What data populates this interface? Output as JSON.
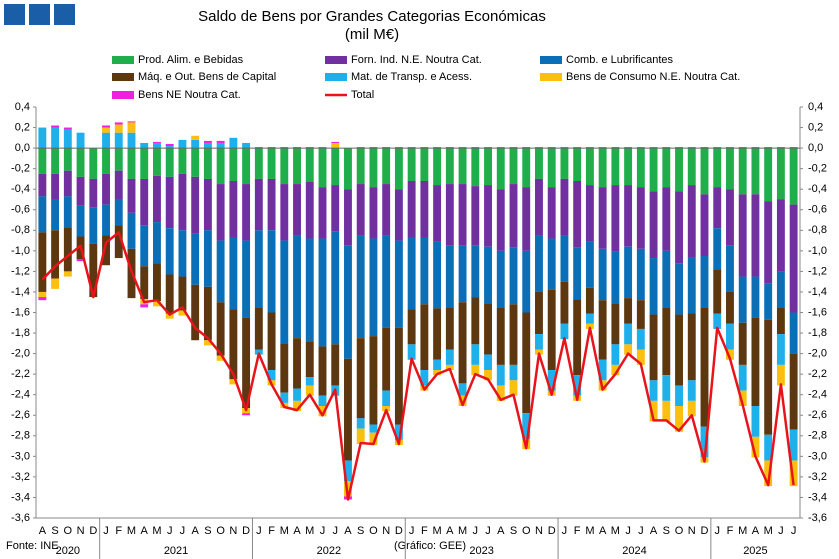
{
  "chart_data": {
    "type": "stacked_bar",
    "title": "Saldo de Bens por Grandes Categorias Económicas",
    "subtitle": "(mil M€)",
    "source": "Fonte: INE",
    "credit": "(Gráfico: GEE)",
    "groups": [
      {
        "year": "2020",
        "months": [
          "A",
          "S",
          "O",
          "N",
          "D"
        ]
      },
      {
        "year": "2021",
        "months": [
          "J",
          "F",
          "M",
          "A",
          "M",
          "J",
          "J",
          "A",
          "S",
          "O",
          "N",
          "D"
        ]
      },
      {
        "year": "2022",
        "months": [
          "J",
          "F",
          "M",
          "A",
          "M",
          "J",
          "J",
          "A",
          "S",
          "O",
          "N",
          "D"
        ]
      },
      {
        "year": "2023",
        "months": [
          "J",
          "F",
          "M",
          "A",
          "M",
          "J",
          "J",
          "A",
          "S",
          "O",
          "N",
          "D"
        ]
      },
      {
        "year": "2024",
        "months": [
          "J",
          "F",
          "M",
          "A",
          "M",
          "J",
          "J",
          "A",
          "S",
          "O",
          "N",
          "D"
        ]
      },
      {
        "year": "2025",
        "months": [
          "J",
          "F",
          "M",
          "A",
          "M",
          "J",
          "J"
        ]
      }
    ],
    "ylim": [
      -3.6,
      0.4
    ],
    "yticks": [
      {
        "value": 0.4,
        "label": "0,4"
      },
      {
        "value": 0.2,
        "label": "0,2"
      },
      {
        "value": 0,
        "label": "0,0"
      },
      {
        "value": -0.2,
        "label": "-0,2"
      },
      {
        "value": -0.4,
        "label": "-0,4"
      },
      {
        "value": -0.6,
        "label": "-0,6"
      },
      {
        "value": -0.8,
        "label": "-0,8"
      },
      {
        "value": -1.0,
        "label": "-1,0"
      },
      {
        "value": -1.2,
        "label": "-1,2"
      },
      {
        "value": -1.4,
        "label": "-1,4"
      },
      {
        "value": -1.6,
        "label": "-1,6"
      },
      {
        "value": -1.8,
        "label": "-1,8"
      },
      {
        "value": -2.0,
        "label": "-2,0"
      },
      {
        "value": -2.2,
        "label": "-2,2"
      },
      {
        "value": -2.4,
        "label": "-2,4"
      },
      {
        "value": -2.6,
        "label": "-2,6"
      },
      {
        "value": -2.8,
        "label": "-2,8"
      },
      {
        "value": -3.0,
        "label": "-3,0"
      },
      {
        "value": -3.2,
        "label": "-3,2"
      },
      {
        "value": -3.4,
        "label": "-3,4"
      },
      {
        "value": -3.6,
        "label": "-3,6"
      }
    ],
    "grid": false,
    "series": [
      {
        "name": "Prod. Alim. e Bebidas",
        "color": "#1fae4b",
        "values": [
          -0.25,
          -0.25,
          -0.22,
          -0.28,
          -0.3,
          -0.25,
          -0.22,
          -0.3,
          -0.3,
          -0.27,
          -0.28,
          -0.25,
          -0.28,
          -0.3,
          -0.35,
          -0.32,
          -0.35,
          -0.3,
          -0.3,
          -0.35,
          -0.35,
          -0.33,
          -0.38,
          -0.36,
          -0.4,
          -0.35,
          -0.38,
          -0.35,
          -0.4,
          -0.32,
          -0.32,
          -0.36,
          -0.35,
          -0.35,
          -0.37,
          -0.36,
          -0.4,
          -0.35,
          -0.38,
          -0.3,
          -0.38,
          -0.3,
          -0.32,
          -0.36,
          -0.38,
          -0.36,
          -0.36,
          -0.38,
          -0.42,
          -0.38,
          -0.42,
          -0.36,
          -0.45,
          -0.38,
          -0.4,
          -0.45,
          -0.45,
          -0.52,
          -0.5,
          -0.55
        ]
      },
      {
        "name": "Forn. Ind. N.E. Noutra Cat.",
        "color": "#7030a0",
        "values": [
          -0.22,
          -0.25,
          -0.25,
          -0.28,
          -0.28,
          -0.3,
          -0.28,
          -0.33,
          -0.45,
          -0.45,
          -0.5,
          -0.55,
          -0.55,
          -0.5,
          -0.55,
          -0.55,
          -0.55,
          -0.5,
          -0.5,
          -0.55,
          -0.5,
          -0.55,
          -0.5,
          -0.45,
          -0.55,
          -0.5,
          -0.5,
          -0.5,
          -0.5,
          -0.55,
          -0.55,
          -0.55,
          -0.6,
          -0.6,
          -0.58,
          -0.6,
          -0.6,
          -0.62,
          -0.62,
          -0.55,
          -0.5,
          -0.55,
          -0.65,
          -0.55,
          -0.6,
          -0.65,
          -0.6,
          -0.6,
          -0.65,
          -0.62,
          -0.7,
          -0.7,
          -0.6,
          -0.4,
          -0.55,
          -0.8,
          -0.8,
          -0.8,
          -0.7,
          -1.05
        ]
      },
      {
        "name": "Comb. e Lubrificantes",
        "color": "#0b6fb8",
        "values": [
          -0.35,
          -0.3,
          -0.3,
          -0.3,
          -0.35,
          -0.3,
          -0.25,
          -0.35,
          -0.4,
          -0.4,
          -0.45,
          -0.45,
          -0.5,
          -0.55,
          -0.6,
          -0.7,
          -0.75,
          -0.75,
          -0.8,
          -1.0,
          -1.0,
          -1.0,
          -1.05,
          -1.1,
          -1.1,
          -1.0,
          -0.95,
          -0.9,
          -0.85,
          -0.7,
          -0.65,
          -0.65,
          -0.6,
          -0.55,
          -0.5,
          -0.55,
          -0.55,
          -0.55,
          -0.6,
          -0.55,
          -0.5,
          -0.45,
          -0.5,
          -0.45,
          -0.5,
          -0.5,
          -0.5,
          -0.5,
          -0.55,
          -0.55,
          -0.5,
          -0.55,
          -0.5,
          -0.4,
          -0.45,
          -0.45,
          -0.4,
          -0.35,
          -0.35,
          -0.4
        ]
      },
      {
        "name": "Máq. e Out. Bens de Capital",
        "color": "#5c3710",
        "values": [
          -0.58,
          -0.47,
          -0.43,
          -0.22,
          -0.52,
          -0.29,
          -0.32,
          -0.48,
          -0.32,
          -0.37,
          -0.38,
          -0.33,
          -0.54,
          -0.52,
          -0.52,
          -0.68,
          -0.88,
          -0.41,
          -0.56,
          -0.48,
          -0.49,
          -0.35,
          -0.48,
          -0.4,
          -0.99,
          -0.78,
          -0.86,
          -0.61,
          -0.94,
          -0.34,
          -0.64,
          -0.5,
          -0.41,
          -0.79,
          -0.46,
          -0.5,
          -0.56,
          -0.59,
          -0.98,
          -0.41,
          -0.78,
          -0.41,
          -0.74,
          -0.25,
          -0.58,
          -0.4,
          -0.25,
          -0.28,
          -0.64,
          -0.66,
          -0.69,
          -0.65,
          -1.16,
          -0.43,
          -0.31,
          -0.41,
          -0.86,
          -1.12,
          -0.26,
          -0.74
        ]
      },
      {
        "name": "Mat. de Transp. e Acess.",
        "color": "#1fb0ec",
        "values": [
          0.2,
          0.2,
          0.18,
          0.15,
          0.0,
          0.15,
          0.15,
          0.15,
          0.05,
          0.05,
          0.02,
          0.08,
          0.08,
          0.05,
          0.05,
          0.1,
          0.05,
          -0.05,
          -0.1,
          -0.1,
          -0.12,
          -0.08,
          -0.1,
          -0.1,
          -0.2,
          -0.1,
          -0.08,
          -0.15,
          -0.15,
          -0.15,
          -0.15,
          -0.1,
          -0.15,
          -0.12,
          -0.2,
          -0.15,
          -0.2,
          -0.15,
          -0.25,
          -0.15,
          -0.2,
          -0.15,
          -0.2,
          -0.1,
          -0.2,
          -0.2,
          -0.2,
          -0.2,
          -0.2,
          -0.25,
          -0.2,
          -0.2,
          -0.3,
          -0.15,
          -0.25,
          -0.25,
          -0.3,
          -0.25,
          -0.3,
          -0.3
        ]
      },
      {
        "name": "Bens de Consumo N.E. Noutra Cat.",
        "color": "#fbbf10",
        "values": [
          -0.05,
          -0.1,
          -0.05,
          0.0,
          0.0,
          0.05,
          0.08,
          0.1,
          -0.05,
          -0.05,
          -0.05,
          -0.05,
          0.04,
          -0.05,
          -0.05,
          -0.05,
          -0.05,
          0.0,
          -0.05,
          -0.05,
          -0.1,
          -0.1,
          -0.1,
          0.05,
          -0.15,
          -0.15,
          -0.12,
          -0.05,
          -0.05,
          0.0,
          -0.05,
          -0.05,
          -0.05,
          -0.1,
          -0.1,
          -0.1,
          -0.15,
          -0.15,
          -0.1,
          -0.05,
          -0.05,
          0.0,
          -0.05,
          -0.05,
          -0.1,
          -0.1,
          -0.1,
          -0.15,
          -0.2,
          -0.2,
          -0.25,
          -0.15,
          -0.05,
          0.0,
          -0.1,
          -0.15,
          -0.2,
          -0.25,
          -0.2,
          -0.25
        ]
      },
      {
        "name": "Bens NE Noutra Cat.",
        "color": "#f020e0",
        "values": [
          -0.03,
          0.02,
          0.02,
          -0.02,
          0.0,
          0.02,
          0.02,
          0.01,
          -0.03,
          0.01,
          0.02,
          0.0,
          0.0,
          0.02,
          0.02,
          0.0,
          -0.02,
          0.01,
          0.01,
          0.01,
          0.01,
          0.01,
          0.01,
          0.01,
          -0.03,
          0.01,
          0.01,
          0.01,
          0.01,
          0.01,
          0.01,
          0.01,
          0.01,
          0.01,
          0.01,
          0.01,
          0.01,
          0.01,
          0.01,
          0.01,
          0.01,
          0.01,
          0.01,
          0.01,
          0.01,
          0.01,
          0.01,
          0.01,
          0.01,
          0.01,
          0.01,
          0.01,
          0.01,
          0.01,
          0.01,
          0.01,
          0.01,
          0.01,
          0.01,
          0.01
        ]
      },
      {
        "name": "Total",
        "color": "#e8141b",
        "line": true,
        "values": [
          -1.28,
          -1.15,
          -1.05,
          -0.95,
          -1.45,
          -0.92,
          -0.82,
          -1.2,
          -1.5,
          -1.48,
          -1.62,
          -1.55,
          -1.75,
          -1.85,
          -2.0,
          -2.2,
          -2.55,
          -2.0,
          -2.3,
          -2.52,
          -2.55,
          -2.4,
          -2.6,
          -2.35,
          -3.42,
          -2.87,
          -2.88,
          -2.55,
          -2.88,
          -2.05,
          -2.35,
          -2.2,
          -2.15,
          -2.5,
          -2.2,
          -2.25,
          -2.45,
          -2.4,
          -2.92,
          -2.0,
          -2.4,
          -1.85,
          -2.45,
          -1.75,
          -2.35,
          -2.2,
          -2.0,
          -2.1,
          -2.65,
          -2.65,
          -2.75,
          -2.6,
          -3.05,
          -1.75,
          -2.05,
          -2.5,
          -3.0,
          -3.28,
          -2.3,
          -3.28
        ]
      }
    ]
  }
}
